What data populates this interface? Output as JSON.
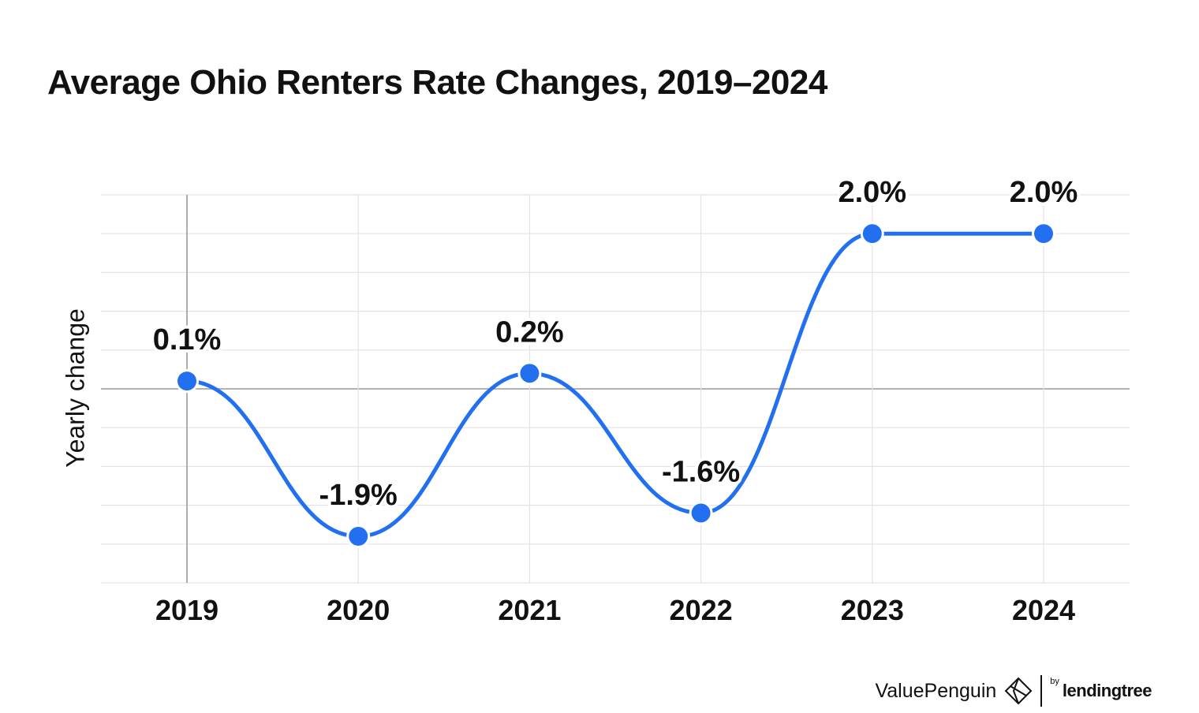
{
  "chart_data": {
    "type": "line",
    "title": "Average Ohio Renters Rate Changes, 2019–2024",
    "ylabel": "Yearly change",
    "xlabel": "",
    "categories": [
      "2019",
      "2020",
      "2021",
      "2022",
      "2023",
      "2024"
    ],
    "values": [
      0.1,
      -1.9,
      0.2,
      -1.6,
      2.0,
      2.0
    ],
    "data_labels": [
      "0.1%",
      "-1.9%",
      "0.2%",
      "-1.6%",
      "2.0%",
      "2.0%"
    ],
    "ylim": [
      -2.5,
      2.5
    ],
    "grid": true,
    "line_color": "#2270f0"
  },
  "branding": {
    "name": "ValuePenguin",
    "by": "by",
    "partner": "lendingtree"
  }
}
